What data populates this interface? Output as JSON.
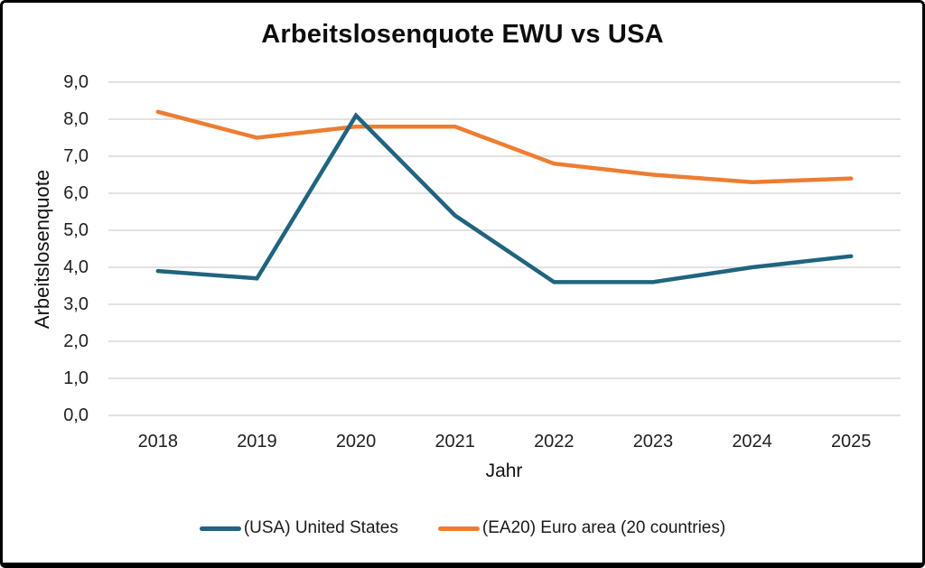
{
  "chart_data": {
    "type": "line",
    "title": "Arbeitslosenquote EWU vs USA",
    "xlabel": "Jahr",
    "ylabel": "Arbeitslosenquote",
    "categories": [
      "2018",
      "2019",
      "2020",
      "2021",
      "2022",
      "2023",
      "2024",
      "2025"
    ],
    "y_ticks": [
      "0,0",
      "1,0",
      "2,0",
      "3,0",
      "4,0",
      "5,0",
      "6,0",
      "7,0",
      "8,0",
      "9,0"
    ],
    "ylim": [
      0,
      9
    ],
    "grid": "horizontal",
    "gridline_color": "#D9D9D9",
    "legend_position": "bottom",
    "series": [
      {
        "name": "(USA) United States",
        "color": "#20647F",
        "values": [
          3.9,
          3.7,
          8.1,
          5.4,
          3.6,
          3.6,
          4.0,
          4.3
        ]
      },
      {
        "name": "(EA20) Euro area (20 countries)",
        "color": "#ED7D31",
        "values": [
          8.2,
          7.5,
          7.8,
          7.8,
          6.8,
          6.5,
          6.3,
          6.4
        ]
      }
    ]
  }
}
